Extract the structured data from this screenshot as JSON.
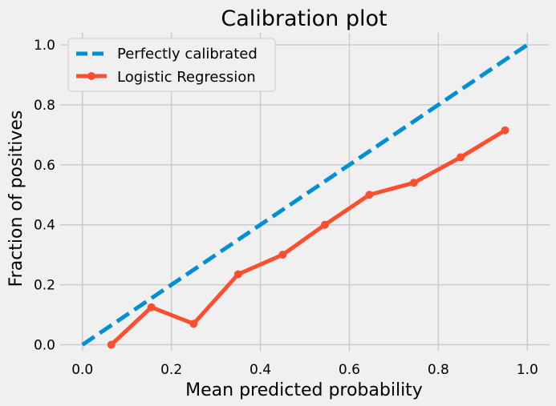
{
  "chart_data": {
    "type": "line",
    "title": "Calibration plot",
    "xlabel": "Mean predicted probability",
    "ylabel": "Fraction of positives",
    "xlim": [
      -0.05,
      1.05
    ],
    "ylim": [
      -0.02,
      1.04
    ],
    "xticks": [
      "0.0",
      "0.2",
      "0.4",
      "0.6",
      "0.8",
      "1.0"
    ],
    "yticks": [
      "0.0",
      "0.2",
      "0.4",
      "0.6",
      "0.8",
      "1.0"
    ],
    "grid": true,
    "legend_position": "top-left",
    "series": [
      {
        "name": "Perfectly calibrated",
        "style": "dashed",
        "color": "#008fd5",
        "x": [
          0.0,
          1.0
        ],
        "y": [
          0.0,
          1.0
        ]
      },
      {
        "name": "Logistic Regression",
        "style": "solid-with-markers",
        "color": "#fc4f30",
        "x": [
          0.065,
          0.155,
          0.25,
          0.35,
          0.45,
          0.545,
          0.645,
          0.745,
          0.85,
          0.95
        ],
        "y": [
          0.0,
          0.125,
          0.07,
          0.235,
          0.3,
          0.4,
          0.5,
          0.54,
          0.625,
          0.715
        ]
      }
    ]
  }
}
